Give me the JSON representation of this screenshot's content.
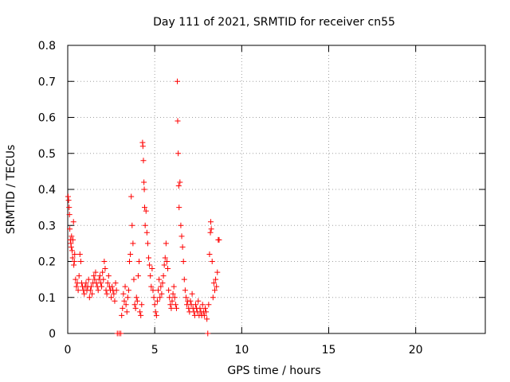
{
  "chart_data": {
    "type": "scatter",
    "title": "Day 111 of 2021, SRMTID for receiver cn55",
    "xlabel": "GPS time / hours",
    "ylabel": "SRMTID / TECUs",
    "xlim": [
      0,
      24
    ],
    "ylim": [
      0,
      0.8
    ],
    "xticks": [
      0,
      5,
      10,
      15,
      20
    ],
    "yticks": [
      0,
      0.1,
      0.2,
      0.3,
      0.4,
      0.5,
      0.6,
      0.7,
      0.8
    ],
    "grid": true,
    "marker": "+",
    "color": "#ff0000",
    "series": [
      {
        "points": [
          [
            0.02,
            0.38
          ],
          [
            0.05,
            0.37
          ],
          [
            0.08,
            0.35
          ],
          [
            0.1,
            0.33
          ],
          [
            0.12,
            0.29
          ],
          [
            0.15,
            0.26
          ],
          [
            0.18,
            0.25
          ],
          [
            0.2,
            0.24
          ],
          [
            0.22,
            0.27
          ],
          [
            0.25,
            0.23
          ],
          [
            0.28,
            0.21
          ],
          [
            0.3,
            0.26
          ],
          [
            0.33,
            0.31
          ],
          [
            0.35,
            0.19
          ],
          [
            0.38,
            0.2
          ],
          [
            0.4,
            0.22
          ],
          [
            0.45,
            0.15
          ],
          [
            0.5,
            0.13
          ],
          [
            0.55,
            0.14
          ],
          [
            0.6,
            0.12
          ],
          [
            0.65,
            0.16
          ],
          [
            0.7,
            0.22
          ],
          [
            0.75,
            0.2
          ],
          [
            0.8,
            0.14
          ],
          [
            0.85,
            0.13
          ],
          [
            0.9,
            0.12
          ],
          [
            0.95,
            0.11
          ],
          [
            1.0,
            0.13
          ],
          [
            1.05,
            0.14
          ],
          [
            1.1,
            0.12
          ],
          [
            1.15,
            0.13
          ],
          [
            1.2,
            0.15
          ],
          [
            1.25,
            0.1
          ],
          [
            1.3,
            0.12
          ],
          [
            1.35,
            0.13
          ],
          [
            1.4,
            0.11
          ],
          [
            1.45,
            0.14
          ],
          [
            1.5,
            0.16
          ],
          [
            1.55,
            0.15
          ],
          [
            1.6,
            0.17
          ],
          [
            1.65,
            0.14
          ],
          [
            1.7,
            0.13
          ],
          [
            1.75,
            0.12
          ],
          [
            1.8,
            0.15
          ],
          [
            1.85,
            0.16
          ],
          [
            1.9,
            0.14
          ],
          [
            1.95,
            0.13
          ],
          [
            2.0,
            0.17
          ],
          [
            2.05,
            0.15
          ],
          [
            2.1,
            0.2
          ],
          [
            2.15,
            0.18
          ],
          [
            2.2,
            0.12
          ],
          [
            2.25,
            0.11
          ],
          [
            2.3,
            0.14
          ],
          [
            2.35,
            0.16
          ],
          [
            2.4,
            0.13
          ],
          [
            2.45,
            0.12
          ],
          [
            2.5,
            0.1
          ],
          [
            2.55,
            0.13
          ],
          [
            2.6,
            0.12
          ],
          [
            2.65,
            0.11
          ],
          [
            2.7,
            0.09
          ],
          [
            2.75,
            0.14
          ],
          [
            2.8,
            0.12
          ],
          [
            2.85,
            0.0
          ],
          [
            2.95,
            0.0
          ],
          [
            3.05,
            0.0
          ],
          [
            3.1,
            0.05
          ],
          [
            3.15,
            0.07
          ],
          [
            3.2,
            0.11
          ],
          [
            3.25,
            0.09
          ],
          [
            3.3,
            0.13
          ],
          [
            3.35,
            0.08
          ],
          [
            3.4,
            0.06
          ],
          [
            3.45,
            0.1
          ],
          [
            3.5,
            0.12
          ],
          [
            3.55,
            0.2
          ],
          [
            3.6,
            0.22
          ],
          [
            3.65,
            0.38
          ],
          [
            3.7,
            0.3
          ],
          [
            3.75,
            0.25
          ],
          [
            3.8,
            0.15
          ],
          [
            3.85,
            0.08
          ],
          [
            3.9,
            0.07
          ],
          [
            3.95,
            0.1
          ],
          [
            4.0,
            0.09
          ],
          [
            4.05,
            0.16
          ],
          [
            4.1,
            0.2
          ],
          [
            4.15,
            0.06
          ],
          [
            4.2,
            0.05
          ],
          [
            4.25,
            0.08
          ],
          [
            4.3,
            0.53
          ],
          [
            4.32,
            0.52
          ],
          [
            4.35,
            0.48
          ],
          [
            4.38,
            0.42
          ],
          [
            4.4,
            0.4
          ],
          [
            4.42,
            0.35
          ],
          [
            4.45,
            0.3
          ],
          [
            4.5,
            0.34
          ],
          [
            4.55,
            0.28
          ],
          [
            4.6,
            0.25
          ],
          [
            4.65,
            0.21
          ],
          [
            4.7,
            0.19
          ],
          [
            4.75,
            0.16
          ],
          [
            4.8,
            0.13
          ],
          [
            4.85,
            0.18
          ],
          [
            4.9,
            0.12
          ],
          [
            4.95,
            0.1
          ],
          [
            5.0,
            0.08
          ],
          [
            5.05,
            0.06
          ],
          [
            5.1,
            0.05
          ],
          [
            5.15,
            0.09
          ],
          [
            5.2,
            0.12
          ],
          [
            5.25,
            0.15
          ],
          [
            5.3,
            0.1
          ],
          [
            5.35,
            0.13
          ],
          [
            5.4,
            0.11
          ],
          [
            5.45,
            0.14
          ],
          [
            5.5,
            0.16
          ],
          [
            5.55,
            0.19
          ],
          [
            5.6,
            0.21
          ],
          [
            5.65,
            0.25
          ],
          [
            5.7,
            0.2
          ],
          [
            5.75,
            0.18
          ],
          [
            5.8,
            0.12
          ],
          [
            5.85,
            0.1
          ],
          [
            5.9,
            0.08
          ],
          [
            5.95,
            0.07
          ],
          [
            6.0,
            0.09
          ],
          [
            6.05,
            0.11
          ],
          [
            6.1,
            0.13
          ],
          [
            6.15,
            0.1
          ],
          [
            6.2,
            0.08
          ],
          [
            6.25,
            0.07
          ],
          [
            6.3,
            0.7
          ],
          [
            6.32,
            0.59
          ],
          [
            6.35,
            0.5
          ],
          [
            6.38,
            0.41
          ],
          [
            6.4,
            0.35
          ],
          [
            6.45,
            0.42
          ],
          [
            6.5,
            0.3
          ],
          [
            6.55,
            0.27
          ],
          [
            6.6,
            0.24
          ],
          [
            6.65,
            0.2
          ],
          [
            6.7,
            0.15
          ],
          [
            6.75,
            0.12
          ],
          [
            6.8,
            0.1
          ],
          [
            6.85,
            0.08
          ],
          [
            6.9,
            0.09
          ],
          [
            6.95,
            0.07
          ],
          [
            7.0,
            0.06
          ],
          [
            7.05,
            0.09
          ],
          [
            7.1,
            0.08
          ],
          [
            7.15,
            0.11
          ],
          [
            7.2,
            0.07
          ],
          [
            7.25,
            0.06
          ],
          [
            7.3,
            0.05
          ],
          [
            7.35,
            0.08
          ],
          [
            7.4,
            0.07
          ],
          [
            7.45,
            0.06
          ],
          [
            7.5,
            0.09
          ],
          [
            7.55,
            0.05
          ],
          [
            7.6,
            0.07
          ],
          [
            7.65,
            0.06
          ],
          [
            7.7,
            0.05
          ],
          [
            7.75,
            0.08
          ],
          [
            7.8,
            0.06
          ],
          [
            7.85,
            0.05
          ],
          [
            7.9,
            0.07
          ],
          [
            7.95,
            0.06
          ],
          [
            8.0,
            0.04
          ],
          [
            8.05,
            0.0
          ],
          [
            8.1,
            0.08
          ],
          [
            8.15,
            0.22
          ],
          [
            8.2,
            0.28
          ],
          [
            8.22,
            0.31
          ],
          [
            8.25,
            0.29
          ],
          [
            8.3,
            0.2
          ],
          [
            8.35,
            0.1
          ],
          [
            8.4,
            0.14
          ],
          [
            8.45,
            0.12
          ],
          [
            8.5,
            0.15
          ],
          [
            8.55,
            0.13
          ],
          [
            8.6,
            0.17
          ],
          [
            8.65,
            0.26
          ],
          [
            8.7,
            0.26
          ]
        ]
      }
    ]
  }
}
